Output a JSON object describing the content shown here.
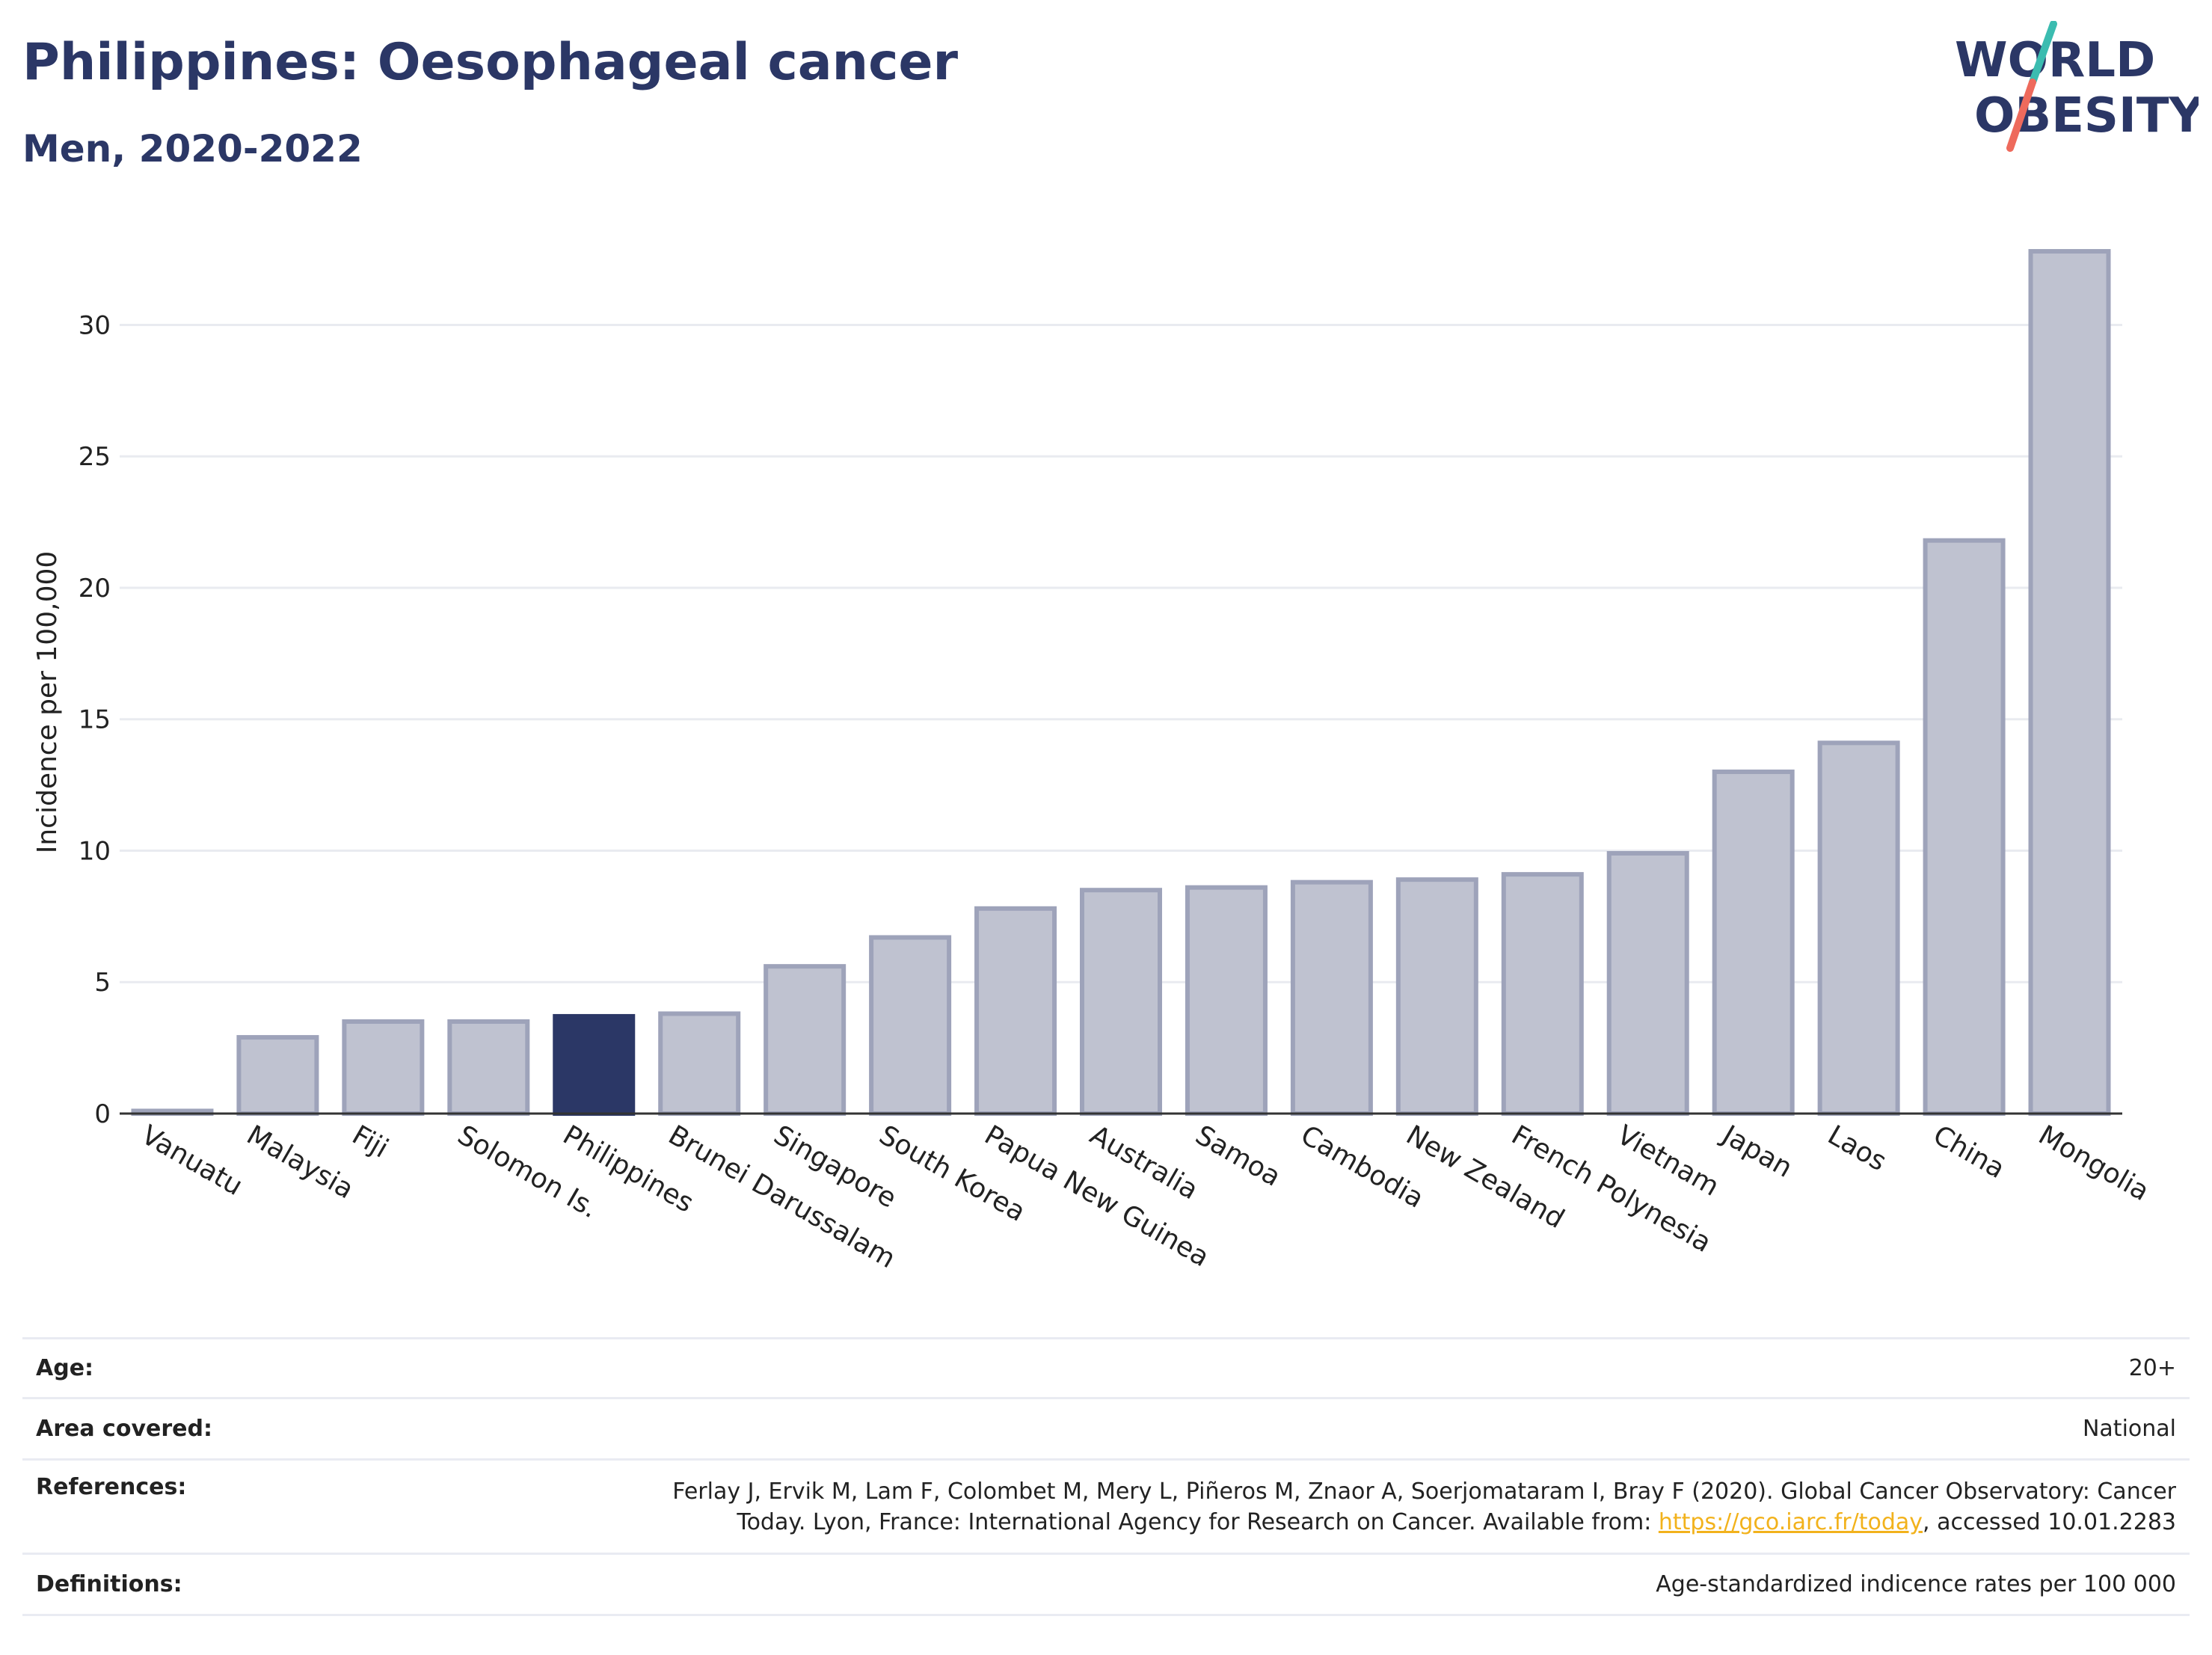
{
  "header": {
    "title": "Philippines: Oesophageal cancer",
    "subtitle": "Men, 2020-2022",
    "logo_line1": "WORLD",
    "logo_line2": "OBESITY"
  },
  "colors": {
    "highlight": "#2b3766",
    "bar": "#bfc2d0",
    "bar_outline": "#9ea3ba",
    "gridline": "#e9ebf0",
    "link": "#f2b21c"
  },
  "chart_data": {
    "type": "bar",
    "title": "Philippines: Oesophageal cancer",
    "subtitle": "Men, 2020-2022",
    "xlabel": "",
    "ylabel": "Incidence per 100,000",
    "categories": [
      "Vanuatu",
      "Malaysia",
      "Fiji",
      "Solomon Is.",
      "Philippines",
      "Brunei Darussalam",
      "Singapore",
      "South Korea",
      "Papua New Guinea",
      "Australia",
      "Samoa",
      "Cambodia",
      "New Zealand",
      "French Polynesia",
      "Vietnam",
      "Japan",
      "Laos",
      "China",
      "Mongolia"
    ],
    "values": [
      0.1,
      2.9,
      3.5,
      3.5,
      3.7,
      3.8,
      5.6,
      6.7,
      7.8,
      8.5,
      8.6,
      8.8,
      8.9,
      9.1,
      9.9,
      13.0,
      14.1,
      21.8,
      32.8
    ],
    "highlight": "Philippines",
    "ylim": [
      0,
      33
    ],
    "yticks": [
      0,
      5,
      10,
      15,
      20,
      25,
      30
    ],
    "grid": true
  },
  "meta": {
    "age_label": "Age:",
    "age_value": "20+",
    "area_label": "Area covered:",
    "area_value": "National",
    "references_label": "References:",
    "references_line1": "Ferlay J, Ervik M, Lam F, Colombet M, Mery L, Piñeros M, Znaor A, Soerjomataram I, Bray F (2020). Global Cancer Observatory: Cancer",
    "references_line2_prefix": "Today. Lyon, France: International Agency for Research on Cancer. Available from: ",
    "references_link": "https://gco.iarc.fr/today",
    "references_line2_suffix": ", accessed 10.01.2283",
    "definitions_label": "Definitions:",
    "definitions_value": "Age-standardized indicence rates per 100 000"
  }
}
